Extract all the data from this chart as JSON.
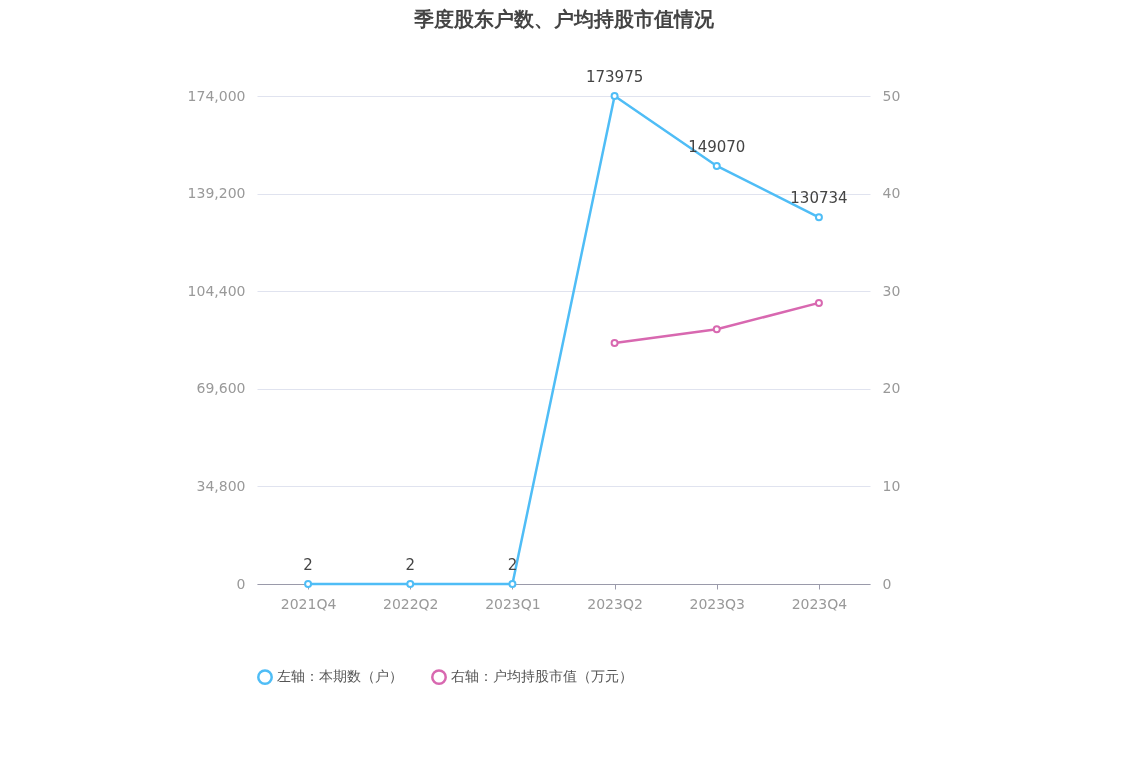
{
  "chart_data": {
    "type": "line",
    "title": "季度股东户数、户均持股市值情况",
    "categories": [
      "2021Q4",
      "2022Q2",
      "2023Q1",
      "2023Q2",
      "2023Q3",
      "2023Q4"
    ],
    "series": [
      {
        "name": "左轴：本期数（户）",
        "color": "#4fbdf6",
        "values": [
          2,
          2,
          2,
          173975,
          149070,
          130734
        ],
        "value_labels": [
          "2",
          "2",
          "2",
          "173975",
          "149070",
          "130734"
        ]
      },
      {
        "name": "右轴：户均持股市值（万元）",
        "color": "#d868b0",
        "values": [
          null,
          null,
          null,
          24.7,
          26.1,
          28.8
        ],
        "axis": "y2"
      }
    ],
    "ylim": [
      0,
      174000
    ],
    "yticks": [
      0,
      {
        "value": 34800,
        "label": "34,800"
      },
      {
        "value": 69600,
        "label": "69,600"
      },
      {
        "value": 104400,
        "label": "104,400"
      },
      {
        "value": 139200,
        "label": "139,200"
      },
      {
        "value": 174000,
        "label": "174,000"
      }
    ],
    "y2lim": [
      0,
      50
    ],
    "y2ticks": [
      0,
      10,
      20,
      30,
      40,
      50
    ],
    "grid": "y",
    "legend": "bottom",
    "marker": "circle",
    "line_style": "solid"
  }
}
